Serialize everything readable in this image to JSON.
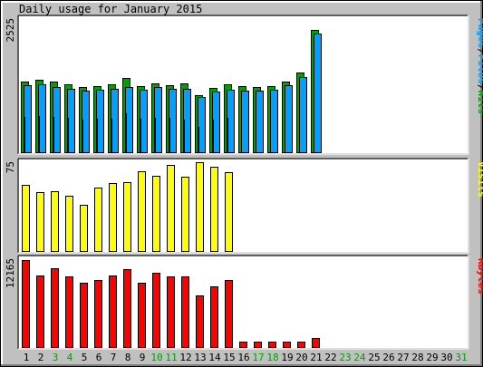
{
  "chart_data": [
    {
      "panel": "hits",
      "type": "bar",
      "title": "Daily usage for January 2015",
      "ylabel_parts": [
        {
          "text": "Pages",
          "color": "#00a0ff"
        },
        {
          "text": "/",
          "color": "#000000"
        },
        {
          "text": "Files",
          "color": "#00a0ff"
        },
        {
          "text": "/",
          "color": "#000000"
        },
        {
          "text": "Hits",
          "color": "#00a000"
        }
      ],
      "y_tick": "2525",
      "ylim": [
        0,
        2770
      ],
      "categories": [
        "1",
        "2",
        "3",
        "4",
        "5",
        "6",
        "7",
        "8",
        "9",
        "10",
        "11",
        "12",
        "13",
        "14",
        "15",
        "16",
        "17",
        "18",
        "19",
        "20",
        "21",
        "22",
        "23",
        "24",
        "25",
        "26",
        "27",
        "28",
        "29",
        "30",
        "31"
      ],
      "weekend": [
        false,
        false,
        true,
        true,
        false,
        false,
        false,
        false,
        false,
        true,
        true,
        false,
        false,
        false,
        false,
        false,
        true,
        true,
        false,
        false,
        false,
        false,
        true,
        true,
        false,
        false,
        false,
        false,
        false,
        false,
        true
      ],
      "series": [
        {
          "name": "Hits",
          "color": "#00a000",
          "values": [
            1470,
            1510,
            1460,
            1410,
            1360,
            1370,
            1410,
            1540,
            1380,
            1440,
            1400,
            1430,
            1190,
            1330,
            1420,
            1370,
            1350,
            1370,
            1460,
            1660,
            2520,
            0,
            0,
            0,
            0,
            0,
            0,
            0,
            0,
            0,
            0
          ]
        },
        {
          "name": "Files",
          "color": "#00a0ff",
          "values": [
            1400,
            1420,
            1350,
            1320,
            1290,
            1300,
            1320,
            1360,
            1300,
            1350,
            1320,
            1320,
            1150,
            1270,
            1310,
            1290,
            1280,
            1300,
            1400,
            1570,
            2450,
            0,
            0,
            0,
            0,
            0,
            0,
            0,
            0,
            0,
            0
          ]
        },
        {
          "name": "Pages",
          "color": "#0080c0",
          "values": [
            740,
            760,
            740,
            730,
            690,
            700,
            700,
            810,
            700,
            720,
            720,
            690,
            530,
            690,
            720,
            0,
            0,
            0,
            0,
            0,
            0,
            0,
            0,
            0,
            0,
            0,
            0,
            0,
            0,
            0,
            0
          ]
        }
      ]
    },
    {
      "panel": "visits",
      "type": "bar",
      "ylabel_parts": [
        {
          "text": "Visits",
          "color": "#ffff00"
        }
      ],
      "y_tick": "75",
      "ylim": [
        0,
        82
      ],
      "series": [
        {
          "name": "Visits",
          "color": "#ffff00",
          "values": [
            61,
            54,
            55,
            51,
            43,
            58,
            62,
            63,
            73,
            69,
            79,
            68,
            81,
            77,
            72,
            0,
            0,
            0,
            0,
            0,
            0,
            0,
            0,
            0,
            0,
            0,
            0,
            0,
            0,
            0,
            0
          ]
        }
      ]
    },
    {
      "panel": "kbytes",
      "type": "bar",
      "ylabel_parts": [
        {
          "text": "KBytes",
          "color": "#ff0000"
        }
      ],
      "y_tick": "12165",
      "ylim": [
        0,
        12100
      ],
      "series": [
        {
          "name": "KBytes",
          "color": "#ff0000",
          "values": [
            11800,
            9800,
            10800,
            9600,
            8800,
            9200,
            9800,
            10600,
            8800,
            10200,
            9600,
            9700,
            7100,
            8300,
            9200,
            830,
            830,
            830,
            830,
            830,
            1320,
            0,
            0,
            0,
            0,
            0,
            0,
            0,
            0,
            0,
            0
          ]
        }
      ]
    }
  ]
}
